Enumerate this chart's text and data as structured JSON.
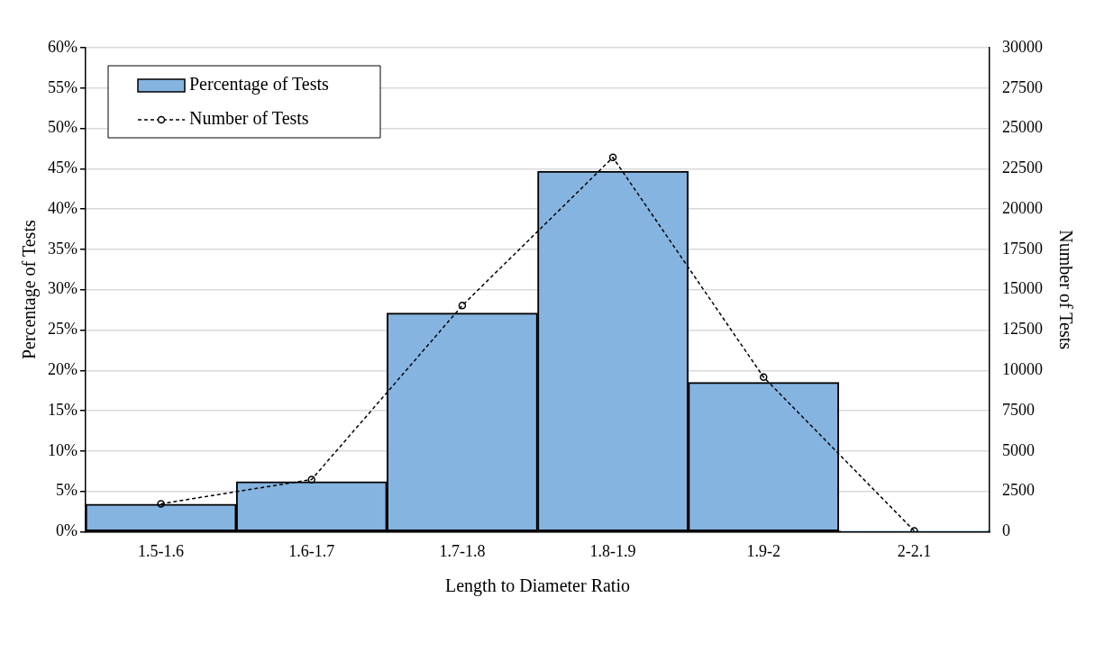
{
  "chart_data": {
    "type": "bar",
    "xlabel": "Length to Diameter Ratio",
    "ylabel": "Percentage of Tests",
    "y2label": "Number of Tests",
    "categories": [
      "1.5-1.6",
      "1.6-1.7",
      "1.7-1.8",
      "1.8-1.9",
      "1.9-2",
      "2-2.1"
    ],
    "series": [
      {
        "name": "Percentage of Tests",
        "color": "#85b4e0",
        "values": [
          3.4,
          6.2,
          27.1,
          44.7,
          18.5,
          0.1
        ]
      },
      {
        "name": "Number of Tests",
        "type": "line",
        "axis": "y2",
        "color": "#000000",
        "marker": "circle",
        "line_style": "dashed",
        "values": [
          1730,
          3230,
          14020,
          23200,
          9580,
          50
        ]
      }
    ],
    "ylim": [
      0,
      60
    ],
    "yticks": [
      {
        "value": 0,
        "label": "0%"
      },
      {
        "value": 5,
        "label": "5%"
      },
      {
        "value": 10,
        "label": "10%"
      },
      {
        "value": 15,
        "label": "15%"
      },
      {
        "value": 20,
        "label": "20%"
      },
      {
        "value": 25,
        "label": "25%"
      },
      {
        "value": 30,
        "label": "30%"
      },
      {
        "value": 35,
        "label": "35%"
      },
      {
        "value": 40,
        "label": "40%"
      },
      {
        "value": 45,
        "label": "45%"
      },
      {
        "value": 50,
        "label": "50%"
      },
      {
        "value": 55,
        "label": "55%"
      },
      {
        "value": 60,
        "label": "60%"
      }
    ],
    "y2lim": [
      0,
      30000
    ],
    "y2ticks": [
      0,
      2500,
      5000,
      7500,
      10000,
      12500,
      15000,
      17500,
      20000,
      22500,
      25000,
      27500,
      30000
    ],
    "grid": "y",
    "legend": "top left"
  }
}
